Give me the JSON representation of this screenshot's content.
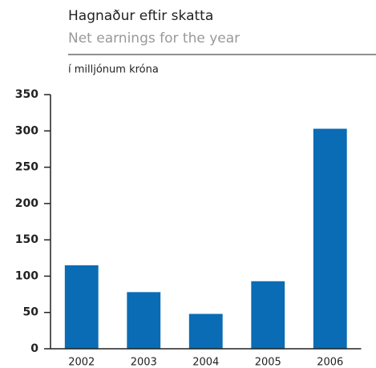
{
  "chart_data": {
    "type": "bar",
    "title": "Hagnaður eftir skatta",
    "subtitle": "Net earnings for the year",
    "y_label": "í milljónum króna",
    "categories": [
      "2002",
      "2003",
      "2004",
      "2005",
      "2006"
    ],
    "values": [
      115,
      78,
      48,
      93,
      303
    ],
    "color": "#0a6cb4",
    "ylim": [
      0,
      350
    ],
    "yticks": [
      0,
      50,
      100,
      150,
      200,
      250,
      300,
      350
    ],
    "grid": false
  }
}
